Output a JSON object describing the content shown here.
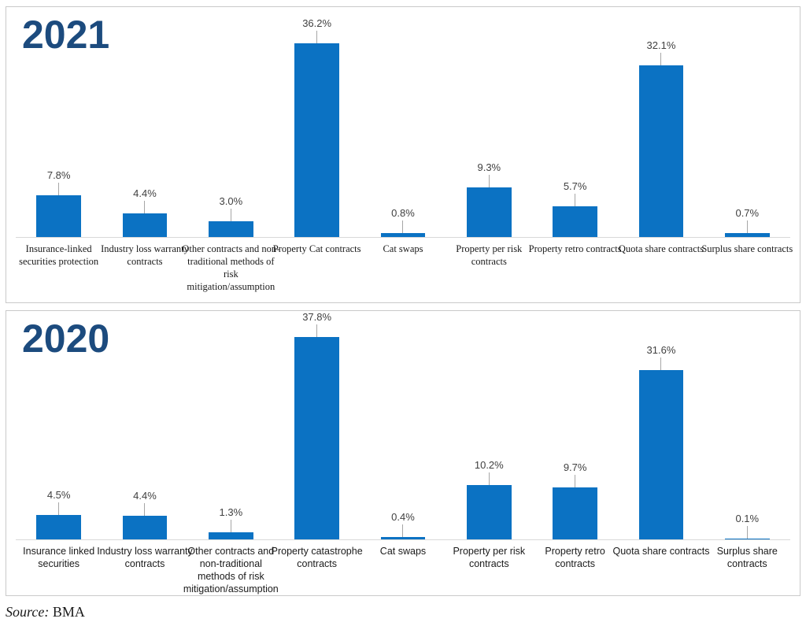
{
  "source": {
    "prefix": "Source:",
    "text": "BMA"
  },
  "styles": {
    "bar_color": "#0b72c3",
    "title_color": "#1c4b7e",
    "axis_color": "#d9d9d9",
    "leader_color": "#a6a6a6",
    "value_label_color": "#404040",
    "category_label_color": "#1a1a1a",
    "panel_border_color": "#c9c9c9"
  },
  "chart_data": [
    {
      "type": "bar",
      "title": "2021",
      "categories": [
        "Insurance-linked securities protection",
        "Industry loss warranty contracts",
        "Other contracts and non-traditional methods of risk mitigation/assumption",
        "Property Cat contracts",
        "Cat swaps",
        "Property per risk contracts",
        "Property retro contracts",
        "Quota share contracts",
        "Surplus share contracts"
      ],
      "values": [
        7.8,
        4.4,
        3.0,
        36.2,
        0.8,
        9.3,
        5.7,
        32.1,
        0.7
      ],
      "value_labels": [
        "7.8%",
        "4.4%",
        "3.0%",
        "36.2%",
        "0.8%",
        "9.3%",
        "5.7%",
        "32.1%",
        "0.7%"
      ],
      "xlabel": "",
      "ylabel": "",
      "ylim": [
        0,
        40
      ],
      "grid": false,
      "legend": false,
      "category_font": "serif"
    },
    {
      "type": "bar",
      "title": "2020",
      "categories": [
        "Insurance linked securities",
        "Industry loss warranty contracts",
        "Other contracts and non-traditional methods of risk mitigation/assumption",
        "Property catastrophe contracts",
        "Cat swaps",
        "Property per risk contracts",
        "Property retro contracts",
        "Quota share contracts",
        "Surplus share contracts"
      ],
      "values": [
        4.5,
        4.4,
        1.3,
        37.8,
        0.4,
        10.2,
        9.7,
        31.6,
        0.1
      ],
      "value_labels": [
        "4.5%",
        "4.4%",
        "1.3%",
        "37.8%",
        "0.4%",
        "10.2%",
        "9.7%",
        "31.6%",
        "0.1%"
      ],
      "xlabel": "",
      "ylabel": "",
      "ylim": [
        0,
        40
      ],
      "grid": false,
      "legend": false,
      "category_font": "sans-serif"
    }
  ]
}
